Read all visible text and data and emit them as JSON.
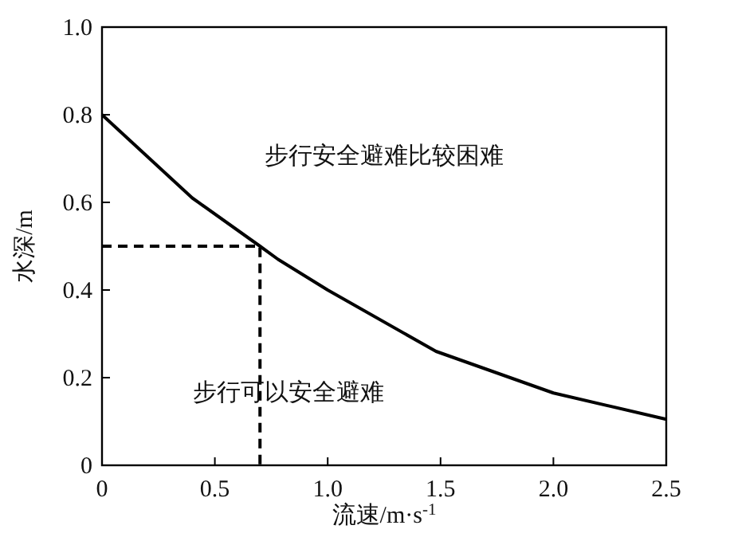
{
  "chart_data": {
    "type": "line",
    "xlabel": "流速/m·s$^{-1}$",
    "ylabel": "水深/m",
    "xlim": [
      0,
      2.5
    ],
    "ylim": [
      0,
      1.0
    ],
    "xticks": [
      0,
      0.5,
      {
        "value": 1,
        "label": "1.0"
      },
      1.5,
      {
        "value": 2,
        "label": "2.0"
      },
      2.5
    ],
    "yticks": [
      0,
      0.2,
      0.4,
      0.6,
      0.8,
      {
        "value": 1,
        "label": "1.0"
      }
    ],
    "series": [
      {
        "color": "#000000",
        "line_style": "solid",
        "x": [
          0,
          0.4,
          0.7,
          0.78,
          1.0,
          1.48,
          2.0,
          2.5
        ],
        "values": [
          0.8,
          0.61,
          0.5,
          0.47,
          0.4,
          0.26,
          0.165,
          0.105
        ]
      },
      {
        "color": "#000000",
        "line_style": "dashed",
        "x": [
          0,
          0.7,
          0.7
        ],
        "values": [
          0.5,
          0.5,
          0
        ]
      }
    ],
    "annotations": [
      "步行安全避难比较困难",
      "步行可以安全避难"
    ],
    "grid": false
  }
}
